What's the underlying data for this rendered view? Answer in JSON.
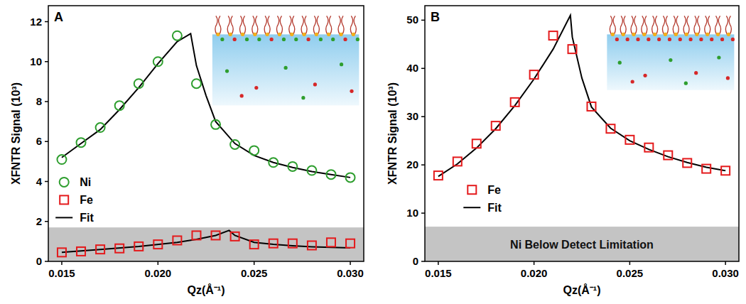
{
  "chart_data": [
    {
      "type": "scatter",
      "label": "A",
      "x_label": "Qz(Å⁻¹)",
      "y_label": "XFNTR Signal (10³)",
      "xlim": [
        0.0143,
        0.0307
      ],
      "ylim": [
        0,
        12.8
      ],
      "xticks": [
        0.015,
        {
          "value": 0.02,
          "label": "0.020"
        },
        0.025,
        {
          "value": 0.03,
          "label": "0.030"
        }
      ],
      "yticks": [
        0,
        2,
        4,
        6,
        8,
        10,
        12
      ],
      "legend": "left",
      "shaded_band": {
        "range": [
          0,
          1.7
        ]
      },
      "series": [
        {
          "name": "Ni",
          "type": "scatter",
          "marker": "circle",
          "color": "#2e9e2e",
          "x": [
            0.015,
            0.016,
            0.017,
            0.018,
            0.019,
            0.02,
            0.021,
            0.022,
            0.023,
            0.024,
            0.025,
            0.026,
            0.027,
            0.028,
            0.029,
            0.03
          ],
          "values": [
            5.1,
            5.95,
            6.7,
            7.8,
            8.9,
            10.0,
            11.3,
            8.9,
            6.85,
            5.85,
            5.55,
            4.95,
            4.75,
            4.55,
            4.35,
            4.2
          ]
        },
        {
          "name": "Fe",
          "type": "scatter",
          "marker": "square",
          "color": "#e41a1c",
          "x": [
            0.015,
            0.016,
            0.017,
            0.018,
            0.019,
            0.02,
            0.021,
            0.022,
            0.023,
            0.024,
            0.025,
            0.026,
            0.027,
            0.028,
            0.029,
            0.03
          ],
          "values": [
            0.45,
            0.5,
            0.6,
            0.65,
            0.75,
            0.85,
            1.05,
            1.3,
            1.3,
            1.25,
            0.85,
            0.9,
            0.9,
            0.8,
            0.95,
            0.9
          ]
        },
        {
          "name": "Fit",
          "type": "line",
          "line_style": "solid",
          "color": "#000000",
          "x": [
            0.015,
            0.016,
            0.017,
            0.018,
            0.019,
            0.02,
            0.021,
            0.0217,
            0.022,
            0.0225,
            0.023,
            0.024,
            0.025,
            0.026,
            0.027,
            0.028,
            0.029,
            0.03
          ],
          "values": [
            5.2,
            5.9,
            6.6,
            7.6,
            8.7,
            9.9,
            11.0,
            11.4,
            9.8,
            8.3,
            7.0,
            5.9,
            5.3,
            4.95,
            4.7,
            4.5,
            4.35,
            4.2
          ]
        },
        {
          "name": "Fit",
          "type": "line",
          "line_style": "solid",
          "color": "#000000",
          "x": [
            0.015,
            0.017,
            0.019,
            0.021,
            0.022,
            0.023,
            0.0237,
            0.024,
            0.025,
            0.026,
            0.027,
            0.028,
            0.029,
            0.03
          ],
          "values": [
            0.45,
            0.6,
            0.75,
            0.95,
            1.1,
            1.3,
            1.55,
            1.3,
            0.95,
            0.85,
            0.78,
            0.73,
            0.7,
            0.68
          ]
        }
      ]
    },
    {
      "type": "scatter",
      "label": "B",
      "x_label": "Qz(Å⁻¹)",
      "y_label": "XFNTR Signal (10³)",
      "xlim": [
        0.0143,
        0.0307
      ],
      "ylim": [
        0,
        53
      ],
      "xticks": [
        0.015,
        {
          "value": 0.02,
          "label": "0.020"
        },
        0.025,
        {
          "value": 0.03,
          "label": "0.030"
        }
      ],
      "yticks": [
        0,
        10,
        20,
        30,
        40,
        50
      ],
      "legend": "bottom",
      "shaded_band": {
        "range": [
          0,
          7.2
        ],
        "text": "Ni Below Detect Limitation"
      },
      "series": [
        {
          "name": "Fe",
          "type": "scatter",
          "marker": "square",
          "color": "#e41a1c",
          "x": [
            0.015,
            0.016,
            0.017,
            0.018,
            0.019,
            0.02,
            0.021,
            0.022,
            0.023,
            0.024,
            0.025,
            0.026,
            0.027,
            0.028,
            0.029,
            0.03
          ],
          "values": [
            17.8,
            20.7,
            24.4,
            28.1,
            33.0,
            38.7,
            46.8,
            44.0,
            32.1,
            27.5,
            25.2,
            23.6,
            22.0,
            20.4,
            19.2,
            18.8
          ]
        },
        {
          "name": "Fit",
          "type": "line",
          "line_style": "solid",
          "color": "#000000",
          "x": [
            0.015,
            0.016,
            0.017,
            0.018,
            0.019,
            0.02,
            0.021,
            0.0219,
            0.022,
            0.0225,
            0.023,
            0.024,
            0.025,
            0.026,
            0.027,
            0.028,
            0.029,
            0.03
          ],
          "values": [
            17.6,
            20.2,
            23.5,
            27.5,
            32.3,
            37.8,
            44.0,
            51.0,
            46.5,
            38.0,
            32.0,
            27.6,
            25.0,
            23.2,
            21.7,
            20.5,
            19.5,
            18.8
          ]
        }
      ]
    }
  ]
}
